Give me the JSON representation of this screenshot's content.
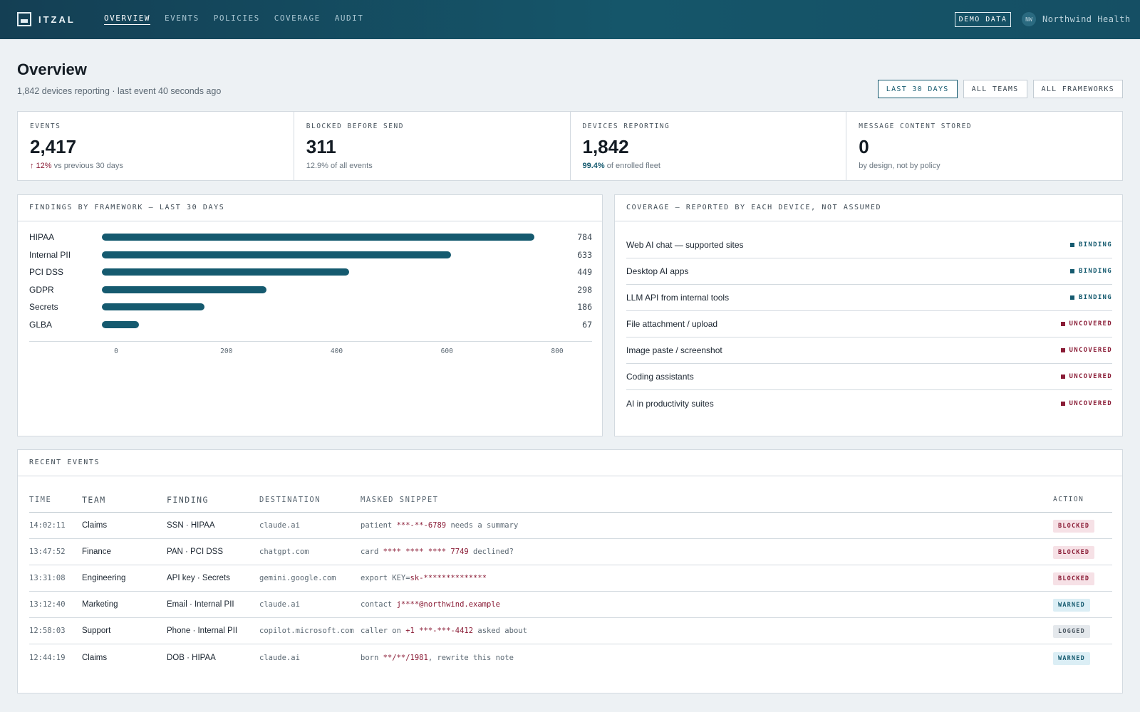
{
  "app": {
    "name": "ITZAL",
    "demo_badge": "DEMO DATA",
    "org_initials": "NW",
    "org_name": "Northwind Health"
  },
  "nav": [
    {
      "label": "OVERVIEW",
      "active": true
    },
    {
      "label": "EVENTS",
      "active": false
    },
    {
      "label": "POLICIES",
      "active": false
    },
    {
      "label": "COVERAGE",
      "active": false
    },
    {
      "label": "AUDIT",
      "active": false
    }
  ],
  "header": {
    "title": "Overview",
    "subtitle": "1,842 devices reporting · last event 40 seconds ago",
    "filters": [
      "LAST 30 DAYS",
      "ALL TEAMS",
      "ALL FRAMEWORKS"
    ]
  },
  "kpis": [
    {
      "label": "EVENTS",
      "value": "2,417",
      "note_highlight": "↑ 12%",
      "note_rest": " vs previous 30 days"
    },
    {
      "label": "BLOCKED BEFORE SEND",
      "value": "311",
      "note_highlight": "",
      "note_rest": "12.9% of all events"
    },
    {
      "label": "DEVICES REPORTING",
      "value": "1,842",
      "note_highlight": "99.4%",
      "note_rest": " of enrolled fleet"
    },
    {
      "label": "MESSAGE CONTENT STORED",
      "value": "0",
      "note_highlight": "",
      "note_rest": "by design, not by policy"
    }
  ],
  "findings": {
    "title": "FINDINGS BY FRAMEWORK — LAST 30 DAYS"
  },
  "chart_data": {
    "type": "bar",
    "orientation": "horizontal",
    "title": "FINDINGS BY FRAMEWORK — LAST 30 DAYS",
    "categories": [
      "HIPAA",
      "Internal PII",
      "PCI DSS",
      "GDPR",
      "Secrets",
      "GLBA"
    ],
    "values": [
      784,
      633,
      449,
      298,
      186,
      67
    ],
    "xlim": [
      0,
      800
    ],
    "ticks": [
      0,
      200,
      400,
      600,
      800
    ],
    "bar_color": "#155a6f",
    "grid": false
  },
  "coverage": {
    "title": "COVERAGE — REPORTED BY EACH DEVICE, NOT ASSUMED",
    "items": [
      {
        "label": "Web AI chat — supported sites",
        "status": "BINDING"
      },
      {
        "label": "Desktop AI apps",
        "status": "BINDING"
      },
      {
        "label": "LLM API from internal tools",
        "status": "BINDING"
      },
      {
        "label": "File attachment / upload",
        "status": "UNCOVERED"
      },
      {
        "label": "Image paste / screenshot",
        "status": "UNCOVERED"
      },
      {
        "label": "Coding assistants",
        "status": "UNCOVERED"
      },
      {
        "label": "AI in productivity suites",
        "status": "UNCOVERED"
      }
    ],
    "colors": {
      "BINDING": "#155a6f",
      "UNCOVERED": "#8a1c36"
    }
  },
  "events": {
    "title": "RECENT EVENTS",
    "columns": [
      "TIME",
      "TEAM",
      "FINDING",
      "DESTINATION",
      "MASKED SNIPPET",
      "ACTION"
    ],
    "rows": [
      {
        "time": "14:02:11",
        "team": "Claims",
        "finding": "SSN · HIPAA",
        "destination": "claude.ai",
        "snippet_pre": "patient ",
        "snippet_mask": "***-**-6789",
        "snippet_post": " needs a summary",
        "action": "BLOCKED"
      },
      {
        "time": "13:47:52",
        "team": "Finance",
        "finding": "PAN · PCI DSS",
        "destination": "chatgpt.com",
        "snippet_pre": "card ",
        "snippet_mask": "**** **** **** 7749",
        "snippet_post": " declined?",
        "action": "BLOCKED"
      },
      {
        "time": "13:31:08",
        "team": "Engineering",
        "finding": "API key · Secrets",
        "destination": "gemini.google.com",
        "snippet_pre": "export KEY=",
        "snippet_mask": "sk-**************",
        "snippet_post": "",
        "action": "BLOCKED"
      },
      {
        "time": "13:12:40",
        "team": "Marketing",
        "finding": "Email · Internal PII",
        "destination": "claude.ai",
        "snippet_pre": "contact ",
        "snippet_mask": "j****@northwind.example",
        "snippet_post": "",
        "action": "WARNED"
      },
      {
        "time": "12:58:03",
        "team": "Support",
        "finding": "Phone · Internal PII",
        "destination": "copilot.microsoft.com",
        "snippet_pre": "caller on ",
        "snippet_mask": "+1 ***-***-4412",
        "snippet_post": " asked about",
        "action": "LOGGED"
      },
      {
        "time": "12:44:19",
        "team": "Claims",
        "finding": "DOB · HIPAA",
        "destination": "claude.ai",
        "snippet_pre": "born ",
        "snippet_mask": "**/**/1981",
        "snippet_post": ", rewrite this note",
        "action": "WARNED"
      }
    ]
  }
}
